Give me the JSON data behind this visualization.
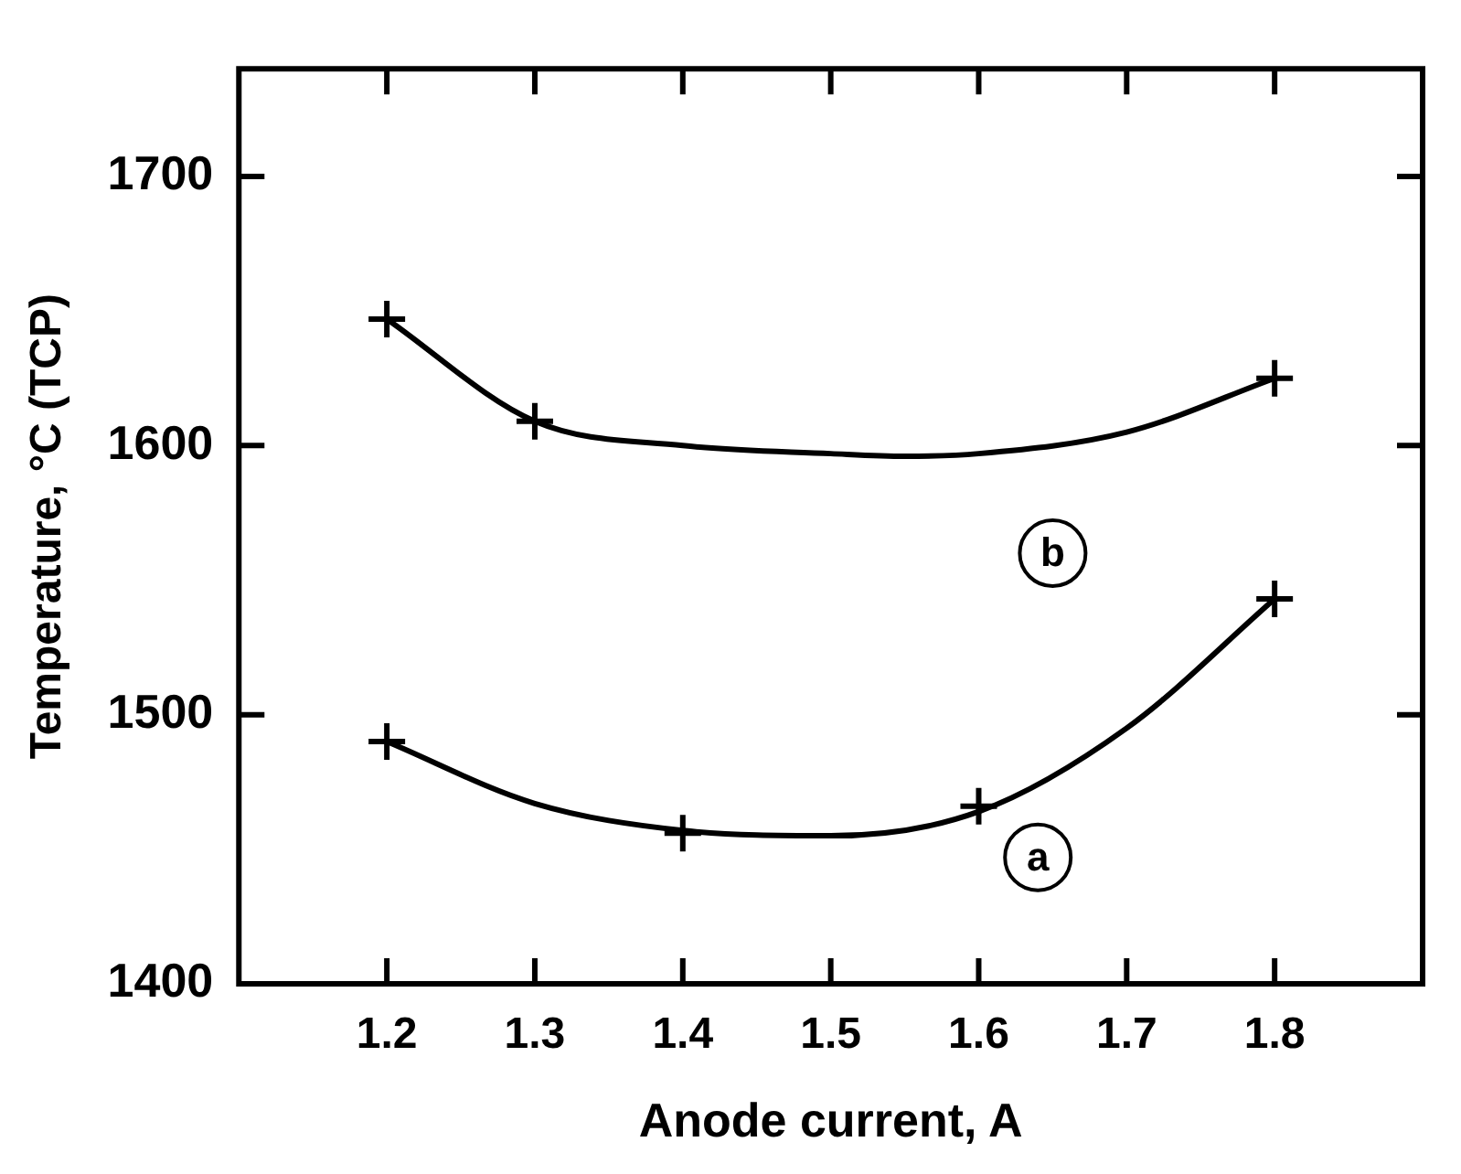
{
  "chart_data": {
    "type": "line",
    "xlabel": "Anode current, A",
    "ylabel": "Temperature, °C (TCP)",
    "xlim": [
      1.1,
      1.9
    ],
    "ylim": [
      1400,
      1740
    ],
    "xticks": [
      1.2,
      1.3,
      1.4,
      1.5,
      1.6,
      1.7,
      1.8
    ],
    "yticks": [
      1400,
      1500,
      1600,
      1700
    ],
    "grid": false,
    "legend": false,
    "series": [
      {
        "type": "scatter",
        "marker": "cross",
        "color": "#000000",
        "x": [
          1.2,
          1.3,
          1.8
        ],
        "values": [
          1647,
          1609,
          1625
        ]
      },
      {
        "type": "line",
        "marker": "none",
        "line_style": "solid",
        "color": "#000000",
        "x": [
          1.2,
          1.3,
          1.4,
          1.5,
          1.55,
          1.6,
          1.7,
          1.8
        ],
        "values": [
          1647,
          1609,
          1600,
          1597,
          1596,
          1597,
          1605,
          1625
        ]
      },
      {
        "type": "scatter",
        "marker": "cross",
        "color": "#000000",
        "x": [
          1.2,
          1.4,
          1.6,
          1.8
        ],
        "values": [
          1490,
          1456,
          1466,
          1543
        ]
      },
      {
        "type": "line",
        "marker": "none",
        "line_style": "solid",
        "color": "#000000",
        "x": [
          1.2,
          1.3,
          1.4,
          1.5,
          1.6,
          1.7,
          1.8
        ],
        "values": [
          1490,
          1467,
          1457,
          1455,
          1464,
          1495,
          1543
        ]
      }
    ],
    "annotations": [
      {
        "text": "b",
        "x": 1.65,
        "y": 1560
      },
      {
        "text": "a",
        "x": 1.64,
        "y": 1447
      }
    ]
  }
}
